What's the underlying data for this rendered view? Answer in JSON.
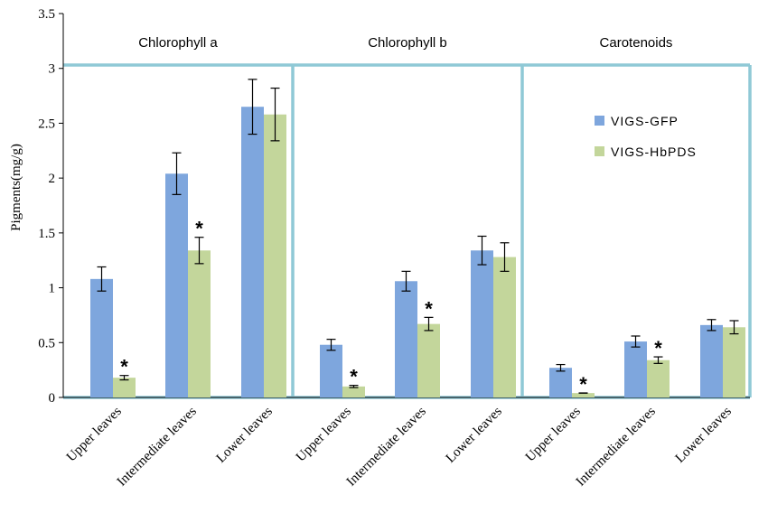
{
  "chart_data": {
    "type": "bar",
    "ylabel": "Pigments(mg/g)",
    "ylim": [
      0,
      3.5
    ],
    "yticks": [
      "0",
      "0.5",
      "1",
      "1.5",
      "2",
      "2.5",
      "3",
      "3.5"
    ],
    "categories": [
      "Upper leaves",
      "Intermediate leaves",
      "Lower leaves"
    ],
    "panels": [
      "Chlorophyll  a",
      "Chlorophyll  b",
      "Carotenoids"
    ],
    "legend_position": "top-right",
    "series": [
      {
        "name": "VIGS-GFP",
        "color": "#7ea6dd",
        "values": [
          [
            1.08,
            2.04,
            2.65
          ],
          [
            0.48,
            1.06,
            1.34
          ],
          [
            0.27,
            0.51,
            0.66
          ]
        ],
        "errors": [
          [
            0.11,
            0.19,
            0.25
          ],
          [
            0.05,
            0.09,
            0.13
          ],
          [
            0.03,
            0.05,
            0.05
          ]
        ]
      },
      {
        "name": "VIGS-HbPDS",
        "color": "#c3d69b",
        "values": [
          [
            0.18,
            1.34,
            2.58
          ],
          [
            0.1,
            0.67,
            1.28
          ],
          [
            0.04,
            0.34,
            0.64
          ]
        ],
        "errors": [
          [
            0.02,
            0.12,
            0.24
          ],
          [
            0.01,
            0.06,
            0.13
          ],
          [
            0.0,
            0.03,
            0.06
          ]
        ]
      }
    ],
    "significance_marker": "*",
    "significant": [
      [
        true,
        true,
        false
      ],
      [
        true,
        true,
        false
      ],
      [
        true,
        true,
        false
      ]
    ],
    "panel_border_color": "#8fc9d6"
  }
}
